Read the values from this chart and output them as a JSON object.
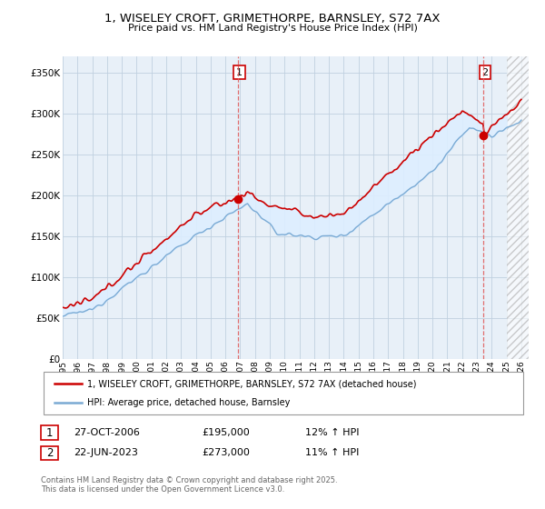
{
  "title": "1, WISELEY CROFT, GRIMETHORPE, BARNSLEY, S72 7AX",
  "subtitle": "Price paid vs. HM Land Registry's House Price Index (HPI)",
  "sale1_date": "27-OCT-2006",
  "sale1_price": 195000,
  "sale1_hpi": "12% ↑ HPI",
  "sale2_date": "22-JUN-2023",
  "sale2_price": 273000,
  "sale2_hpi": "11% ↑ HPI",
  "legend1": "1, WISELEY CROFT, GRIMETHORPE, BARNSLEY, S72 7AX (detached house)",
  "legend2": "HPI: Average price, detached house, Barnsley",
  "footnote": "Contains HM Land Registry data © Crown copyright and database right 2025.\nThis data is licensed under the Open Government Licence v3.0.",
  "line1_color": "#cc0000",
  "line2_color": "#7aaad4",
  "fill_color": "#ddeeff",
  "background_color": "#ffffff",
  "chart_bg_color": "#e8f0f8",
  "grid_color": "#c0d0e0",
  "sale_marker_color": "#cc0000",
  "sale_vline_color": "#e06060",
  "ylim_min": 0,
  "ylim_max": 370000,
  "yticks": [
    0,
    50000,
    100000,
    150000,
    200000,
    250000,
    300000,
    350000
  ],
  "xstart_year": 1995,
  "xend_year": 2026,
  "sale1_x": 2006.83,
  "sale2_x": 2023.46
}
